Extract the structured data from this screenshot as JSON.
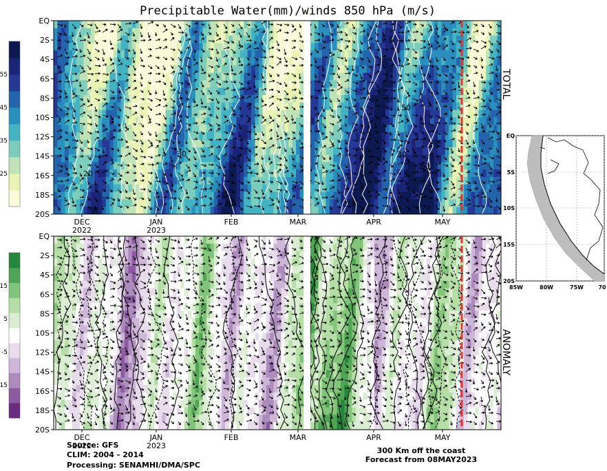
{
  "chart_data": [
    {
      "type": "heatmap",
      "title": "Precipitable Water(mm)/winds 850 hPa (m/s)",
      "panel_label": "TOTAL",
      "yticks": [
        "EQ",
        "2S",
        "4S",
        "6S",
        "8S",
        "10S",
        "12S",
        "14S",
        "16S",
        "18S",
        "20S"
      ],
      "ylim": [
        -20,
        0
      ],
      "xticks": [
        {
          "label": "DEC",
          "sub": "2022"
        },
        {
          "label": "JAN",
          "sub": "2023"
        },
        {
          "label": "FEB",
          "sub": ""
        },
        {
          "label": "MAR",
          "sub": ""
        },
        {
          "label": "APR",
          "sub": ""
        },
        {
          "label": "MAY",
          "sub": ""
        }
      ],
      "colorbar": {
        "labels": [
          "55",
          "45",
          "35",
          "25"
        ],
        "range": [
          20,
          60
        ]
      },
      "contour_labels": [
        "50",
        "50",
        "30",
        "30",
        "20",
        "50"
      ],
      "forecast_marker_date": "08MAY2023"
    },
    {
      "type": "heatmap",
      "panel_label": "ANOMALY",
      "yticks": [
        "EQ",
        "2S",
        "4S",
        "6S",
        "8S",
        "10S",
        "12S",
        "14S",
        "16S",
        "18S",
        "20S"
      ],
      "ylim": [
        -20,
        0
      ],
      "xticks": [
        {
          "label": "DEC",
          "sub": "2022"
        },
        {
          "label": "JAN",
          "sub": "2023"
        },
        {
          "label": "FEB",
          "sub": ""
        },
        {
          "label": "MAR",
          "sub": ""
        },
        {
          "label": "APR",
          "sub": ""
        },
        {
          "label": "MAY",
          "sub": ""
        }
      ],
      "colorbar": {
        "labels": [
          "15",
          "5",
          "-5",
          "-15"
        ],
        "range": [
          -20,
          20
        ]
      }
    }
  ],
  "map": {
    "yticks": [
      "EQ",
      "5S",
      "10S",
      "15S",
      "20S"
    ],
    "xticks": [
      "85W",
      "80W",
      "75W",
      "70"
    ]
  },
  "footer": {
    "source": "Source: GFS",
    "clim": "CLIM: 2004 - 2014",
    "processing": "Processing: SENAMHI/DMA/SPC",
    "note1": "300 Km off the coast",
    "note2": "Forecast from 08MAY2023"
  },
  "colors": {
    "forecast_line": "#e8322c",
    "total_scale": [
      "#fbfbd9",
      "#e8f3b4",
      "#bfe2b6",
      "#7dcdbc",
      "#43b3c4",
      "#2b8fbe",
      "#2364ac",
      "#253896",
      "#1b2577",
      "#0d1a52"
    ],
    "anomaly_scale": [
      "#6a2a7e",
      "#8c5aa0",
      "#ad8bbd",
      "#cdb6d8",
      "#e8dcec",
      "#ffffff",
      "#dbeed4",
      "#b5dea6",
      "#82c47a",
      "#4fa553",
      "#23883c"
    ]
  }
}
